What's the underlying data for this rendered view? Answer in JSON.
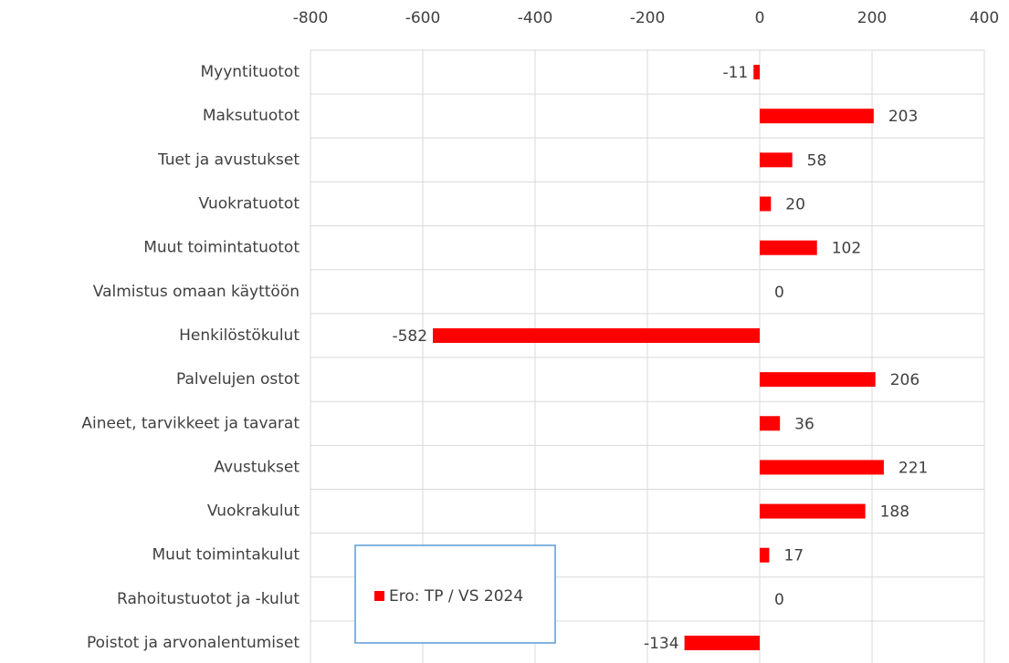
{
  "chart_data": {
    "type": "barh",
    "categories": [
      "Myyntituotot",
      "Maksutuotot",
      "Tuet ja avustukset",
      "Vuokratuotot",
      "Muut toimintatuotot",
      "Valmistus omaan käyttöön",
      "Henkilöstökulut",
      "Palvelujen ostot",
      "Aineet, tarvikkeet ja tavarat",
      "Avustukset",
      "Vuokrakulut",
      "Muut toimintakulut",
      "Rahoitustuotot ja -kulut",
      "Poistot ja arvonalentumiset"
    ],
    "series": [
      {
        "name": "Ero: TP / VS 2024",
        "color": "#ff0000",
        "values": [
          -11,
          203,
          58,
          20,
          102,
          0,
          -582,
          206,
          36,
          221,
          188,
          17,
          0,
          -134
        ]
      }
    ],
    "xlim": [
      -800,
      400
    ],
    "xticks": [
      -800,
      -600,
      -400,
      -200,
      0,
      200,
      400
    ],
    "grid": true,
    "legend": "lower left"
  }
}
